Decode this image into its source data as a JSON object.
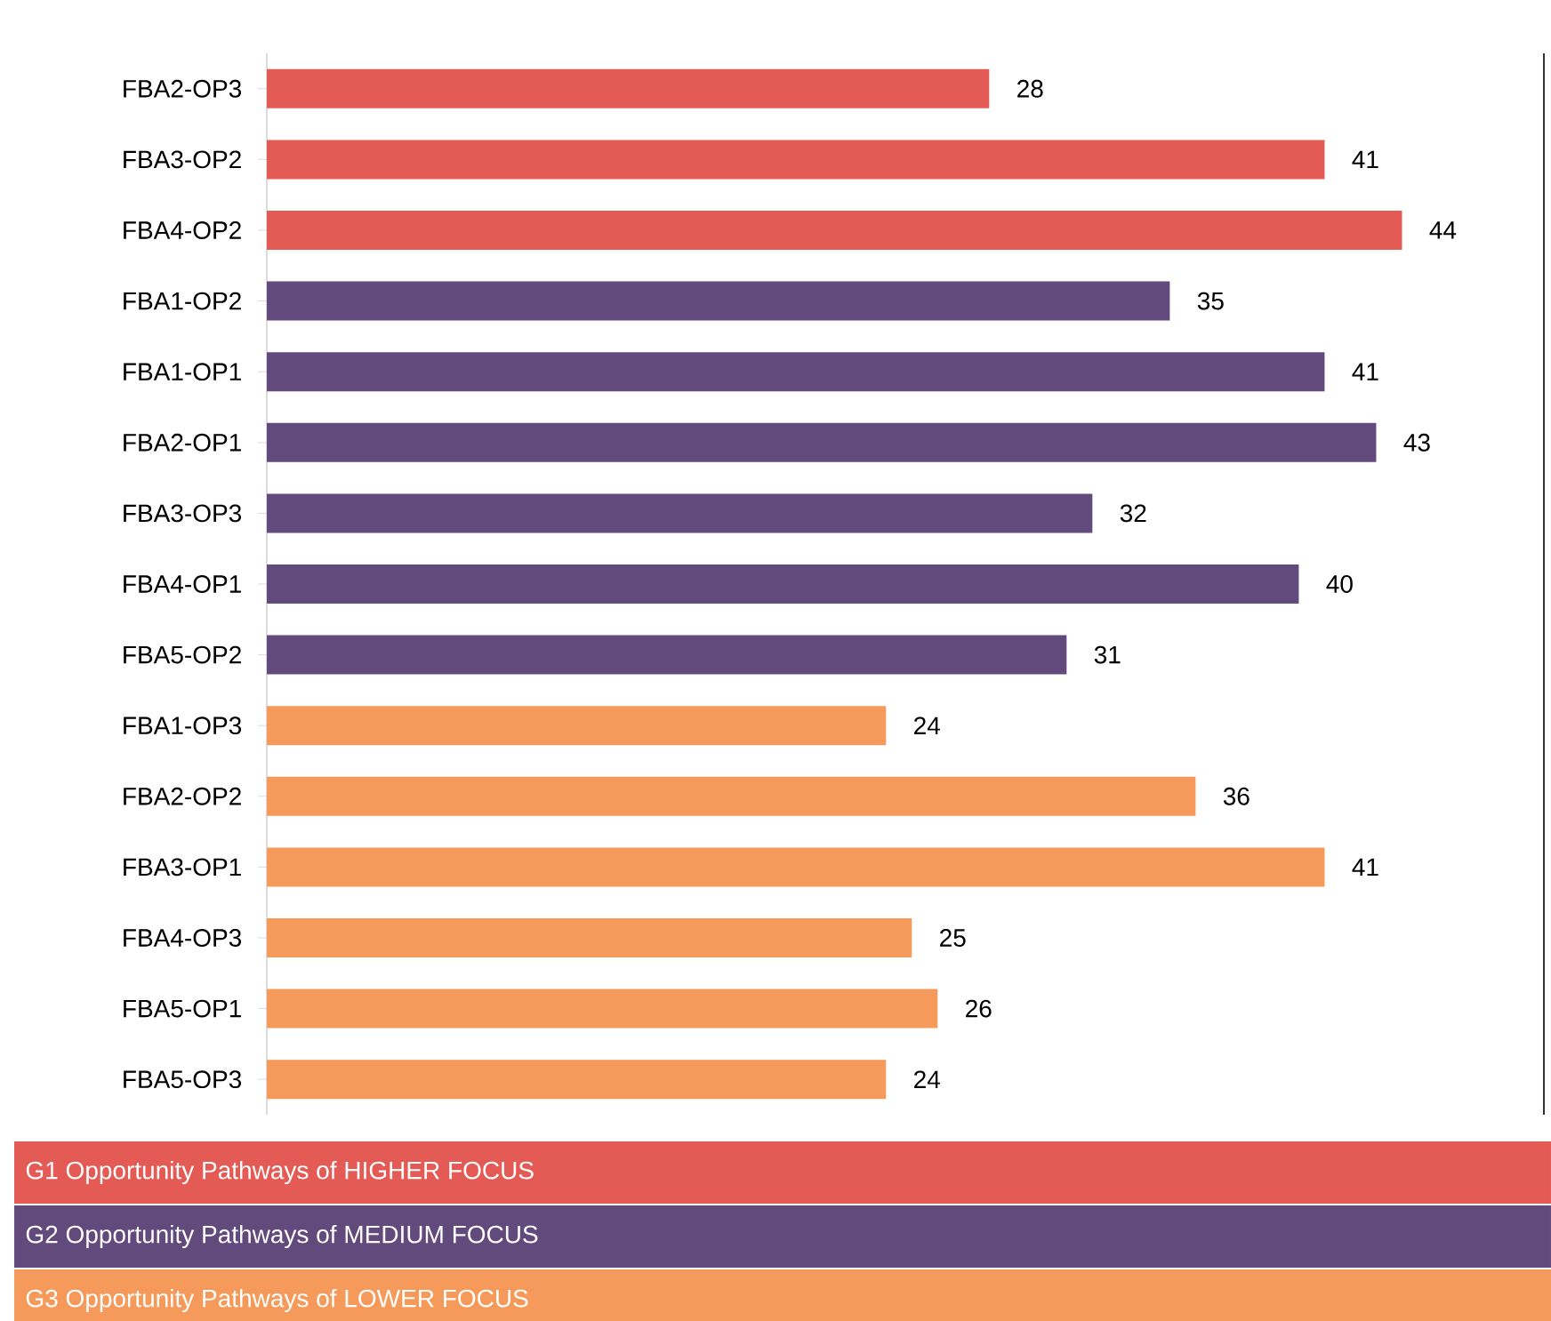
{
  "chart_data": {
    "type": "bar",
    "orientation": "horizontal",
    "categories": [
      "FBA2-OP3",
      "FBA3-OP2",
      "FBA4-OP2",
      "FBA1-OP2",
      "FBA1-OP1",
      "FBA2-OP1",
      "FBA3-OP3",
      "FBA4-OP1",
      "FBA5-OP2",
      "FBA1-OP3",
      "FBA2-OP2",
      "FBA3-OP1",
      "FBA4-OP3",
      "FBA5-OP1",
      "FBA5-OP3"
    ],
    "series": [
      {
        "name": "G1 Opportunity Pathways of HIGHER FOCUS",
        "color": "#e45a55",
        "values": [
          28,
          41,
          44,
          null,
          null,
          null,
          null,
          null,
          null,
          null,
          null,
          null,
          null,
          null,
          null
        ]
      },
      {
        "name": "G2 Opportunity Pathways of MEDIUM FOCUS",
        "color": "#634a7d",
        "values": [
          null,
          null,
          null,
          35,
          41,
          43,
          32,
          40,
          31,
          null,
          null,
          null,
          null,
          null,
          null
        ]
      },
      {
        "name": "G3 Opportunity Pathways of LOWER FOCUS",
        "color": "#f59a5a",
        "values": [
          null,
          null,
          null,
          null,
          null,
          null,
          null,
          null,
          null,
          24,
          36,
          41,
          25,
          26,
          24
        ]
      }
    ],
    "xlim": [
      0,
      49.5
    ],
    "data_labels": true,
    "legend": "bottom",
    "tick_labels": "y"
  }
}
